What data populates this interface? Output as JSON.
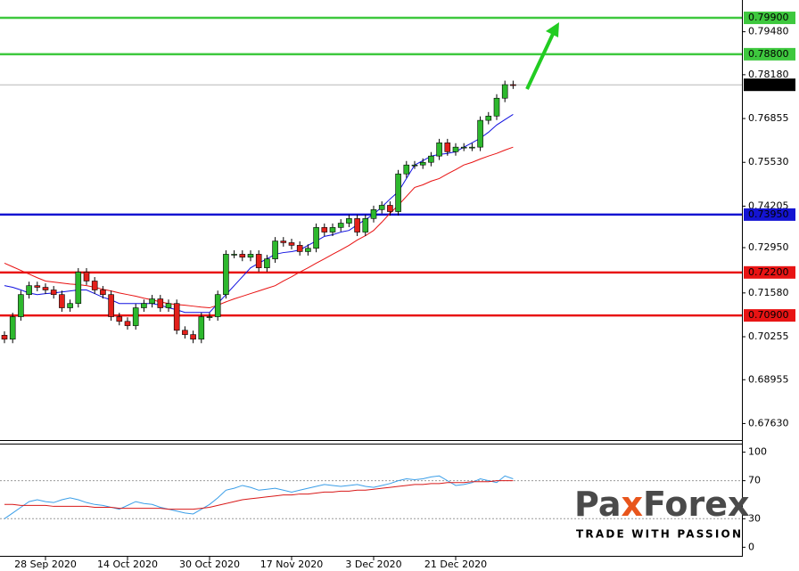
{
  "chart_data": [
    {
      "type": "candlestick",
      "categories": [
        null,
        null,
        null,
        null,
        null,
        "28 Sep 2020",
        null,
        null,
        null,
        null,
        null,
        null,
        null,
        null,
        null,
        "14 Oct 2020",
        null,
        null,
        null,
        null,
        null,
        null,
        null,
        null,
        null,
        "30 Oct 2020",
        null,
        null,
        null,
        null,
        null,
        null,
        null,
        null,
        null,
        "17 Nov 2020",
        null,
        null,
        null,
        null,
        null,
        null,
        null,
        null,
        null,
        "3 Dec 2020",
        null,
        null,
        null,
        null,
        null,
        null,
        null,
        null,
        null,
        "21 Dec 2020",
        null,
        null,
        null,
        null,
        null,
        null,
        null
      ],
      "open": [
        0.703,
        0.7018,
        0.7086,
        0.7153,
        0.718,
        0.7175,
        0.7167,
        0.7153,
        0.7113,
        0.7126,
        0.7221,
        0.7194,
        0.7167,
        0.7153,
        0.7086,
        0.7072,
        0.7059,
        0.7113,
        0.7126,
        0.714,
        0.7113,
        0.7126,
        0.7045,
        0.7032,
        0.7018,
        0.7086,
        0.7086,
        0.7153,
        0.7275,
        0.7275,
        0.7266,
        0.7275,
        0.7234,
        0.7261,
        0.7315,
        0.731,
        0.7302,
        0.7283,
        0.7293,
        0.7356,
        0.7342,
        0.7356,
        0.7369,
        0.7383,
        0.7342,
        0.7383,
        0.741,
        0.7423,
        0.7404,
        0.7518,
        0.7545,
        0.7545,
        0.7553,
        0.7572,
        0.7612,
        0.7585,
        0.7599,
        0.7599,
        0.7599,
        0.768,
        0.7693,
        0.7747,
        0.7788
      ],
      "high": [
        0.7042,
        0.7098,
        0.7165,
        0.7192,
        0.7192,
        0.7187,
        0.7179,
        0.7165,
        0.7138,
        0.7233,
        0.7233,
        0.7206,
        0.7179,
        0.7165,
        0.7098,
        0.7084,
        0.7125,
        0.7138,
        0.7152,
        0.7152,
        0.7138,
        0.7138,
        0.7057,
        0.7044,
        0.7098,
        0.7098,
        0.7165,
        0.7287,
        0.7287,
        0.7287,
        0.7287,
        0.7287,
        0.7273,
        0.7327,
        0.7327,
        0.7322,
        0.7314,
        0.7305,
        0.7368,
        0.7368,
        0.7368,
        0.7381,
        0.7395,
        0.7395,
        0.7395,
        0.7422,
        0.7435,
        0.7435,
        0.753,
        0.7557,
        0.7557,
        0.7565,
        0.7584,
        0.7624,
        0.7624,
        0.7611,
        0.7611,
        0.7611,
        0.7692,
        0.7705,
        0.7759,
        0.78,
        0.78
      ],
      "low": [
        0.7006,
        0.7006,
        0.7074,
        0.7141,
        0.7163,
        0.7155,
        0.7141,
        0.7101,
        0.7101,
        0.7114,
        0.7182,
        0.7155,
        0.7141,
        0.7074,
        0.706,
        0.7047,
        0.7047,
        0.7101,
        0.7114,
        0.7101,
        0.7101,
        0.7033,
        0.702,
        0.7006,
        0.7006,
        0.7074,
        0.7074,
        0.7141,
        0.7263,
        0.7254,
        0.7254,
        0.7222,
        0.7222,
        0.7249,
        0.7298,
        0.729,
        0.7271,
        0.7271,
        0.7281,
        0.733,
        0.733,
        0.7344,
        0.7357,
        0.733,
        0.733,
        0.7371,
        0.7398,
        0.7392,
        0.7392,
        0.7506,
        0.7533,
        0.7533,
        0.7541,
        0.756,
        0.7573,
        0.7573,
        0.7587,
        0.7587,
        0.7587,
        0.7668,
        0.7681,
        0.7735,
        0.7775
      ],
      "close": [
        0.7018,
        0.7086,
        0.7153,
        0.718,
        0.7175,
        0.7167,
        0.7153,
        0.7113,
        0.7126,
        0.7221,
        0.7194,
        0.7167,
        0.7153,
        0.7086,
        0.7072,
        0.7059,
        0.7113,
        0.7126,
        0.714,
        0.7113,
        0.7126,
        0.7045,
        0.7032,
        0.7018,
        0.7086,
        0.7086,
        0.7153,
        0.7275,
        0.7275,
        0.7266,
        0.7275,
        0.7234,
        0.7261,
        0.7315,
        0.731,
        0.7302,
        0.7283,
        0.7293,
        0.7356,
        0.7342,
        0.7356,
        0.7369,
        0.7383,
        0.7342,
        0.7383,
        0.741,
        0.7423,
        0.7404,
        0.7518,
        0.7545,
        0.7545,
        0.7553,
        0.7572,
        0.7612,
        0.7585,
        0.7599,
        0.7599,
        0.7599,
        0.768,
        0.7693,
        0.7747,
        0.7788,
        0.7787
      ],
      "up_color": "#2db82d",
      "down_color": "#e3201b",
      "overlays": [
        {
          "color": "#1010e0",
          "values": [
            0.718,
            0.7175,
            0.7167,
            0.7158,
            0.7153,
            0.7156,
            0.7158,
            0.7161,
            0.7164,
            0.7167,
            0.7167,
            0.7156,
            0.7145,
            0.7137,
            0.7126,
            0.7126,
            0.7126,
            0.7126,
            0.7126,
            0.7121,
            0.7113,
            0.7107,
            0.7099,
            0.7099,
            0.7099,
            0.7099,
            0.7126,
            0.7153,
            0.718,
            0.7207,
            0.7234,
            0.7248,
            0.7261,
            0.7275,
            0.728,
            0.7283,
            0.7288,
            0.7302,
            0.7315,
            0.7329,
            0.7334,
            0.7342,
            0.7347,
            0.7364,
            0.738,
            0.7396,
            0.7418,
            0.7442,
            0.7464,
            0.7504,
            0.7545,
            0.7558,
            0.7572,
            0.7577,
            0.758,
            0.7585,
            0.7599,
            0.7612,
            0.7626,
            0.7644,
            0.7666,
            0.7682,
            0.7698
          ]
        },
        {
          "color": "#e81010",
          "values": [
            0.7248,
            0.7237,
            0.7226,
            0.7215,
            0.7204,
            0.7194,
            0.7191,
            0.7188,
            0.7185,
            0.7183,
            0.718,
            0.7175,
            0.7169,
            0.7164,
            0.7158,
            0.7153,
            0.7148,
            0.7142,
            0.7137,
            0.7131,
            0.7126,
            0.7123,
            0.7121,
            0.7118,
            0.7115,
            0.7113,
            0.7121,
            0.7131,
            0.714,
            0.7148,
            0.7156,
            0.7164,
            0.7172,
            0.718,
            0.7194,
            0.7207,
            0.7221,
            0.7234,
            0.7248,
            0.7261,
            0.7275,
            0.7288,
            0.7302,
            0.7318,
            0.7331,
            0.7347,
            0.7372,
            0.7399,
            0.7423,
            0.745,
            0.7477,
            0.7485,
            0.7496,
            0.7504,
            0.7518,
            0.7531,
            0.7545,
            0.7553,
            0.7563,
            0.7572,
            0.758,
            0.759,
            0.7599
          ]
        }
      ],
      "levels": [
        {
          "value": 0.799,
          "label": "0.79900",
          "color": "#3ec83e",
          "text_color": "#000000"
        },
        {
          "value": 0.788,
          "label": "0.78800",
          "color": "#3ec83e",
          "text_color": "#000000"
        },
        {
          "value": 0.7395,
          "label": "0.73950",
          "color": "#1414d2",
          "text_color": "#ffffff"
        },
        {
          "value": 0.722,
          "label": "0.72200",
          "color": "#e81414",
          "text_color": "#ffffff"
        },
        {
          "value": 0.709,
          "label": "0.70900",
          "color": "#e81414",
          "text_color": "#ffffff"
        }
      ],
      "last_price": {
        "value": 0.77875,
        "label": "0.77875"
      },
      "ylim": [
        0.6713,
        0.8044
      ],
      "yticks": [
        {
          "value": 0.7948,
          "label": "0.79480"
        },
        {
          "value": 0.7818,
          "label": "0.78180"
        },
        {
          "value": 0.76855,
          "label": "0.76855"
        },
        {
          "value": 0.7553,
          "label": "0.75530"
        },
        {
          "value": 0.74205,
          "label": "0.74205"
        },
        {
          "value": 0.7295,
          "label": "0.72950"
        },
        {
          "value": 0.7158,
          "label": "0.71580"
        },
        {
          "value": 0.70255,
          "label": "0.70255"
        },
        {
          "value": 0.68955,
          "label": "0.68955"
        },
        {
          "value": 0.6763,
          "label": "0.67630"
        }
      ]
    },
    {
      "type": "line",
      "series": [
        {
          "color": "#3a9ee8",
          "values": [
            30,
            36,
            42,
            48,
            50,
            48,
            47,
            50,
            52,
            50,
            47,
            45,
            44,
            42,
            40,
            44,
            48,
            46,
            45,
            42,
            40,
            38,
            36,
            35,
            40,
            45,
            52,
            60,
            62,
            65,
            63,
            60,
            61,
            62,
            60,
            58,
            60,
            62,
            64,
            66,
            65,
            64,
            65,
            66,
            64,
            63,
            65,
            67,
            70,
            72,
            71,
            72,
            74,
            75,
            70,
            65,
            66,
            68,
            72,
            70,
            68,
            75,
            72
          ]
        },
        {
          "color": "#d81818",
          "values": [
            45,
            45,
            44,
            44,
            44,
            44,
            43,
            43,
            43,
            43,
            43,
            42,
            42,
            42,
            41,
            41,
            41,
            41,
            41,
            41,
            40,
            40,
            40,
            40,
            41,
            42,
            44,
            46,
            48,
            50,
            51,
            52,
            53,
            54,
            55,
            55,
            56,
            56,
            57,
            58,
            58,
            59,
            59,
            60,
            60,
            61,
            62,
            63,
            64,
            65,
            66,
            66,
            67,
            67,
            68,
            68,
            68,
            69,
            69,
            69,
            70,
            70,
            70
          ]
        }
      ],
      "ylim": [
        -10,
        109
      ],
      "yticks": [
        0,
        30,
        70,
        100
      ],
      "dashed_levels": [
        30,
        70
      ]
    }
  ],
  "logo": {
    "parts": [
      "Pa",
      "x",
      "Forex"
    ],
    "tagline": "TRADE WITH PASSION"
  }
}
